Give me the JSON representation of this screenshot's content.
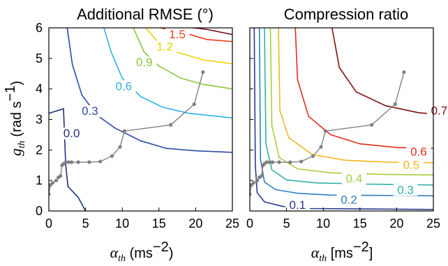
{
  "chart_data": [
    {
      "type": "line",
      "title": "Additional RMSE (°)",
      "x_label": {
        "symbol": "α",
        "sub": "th",
        "unit_pre": " (ms",
        "unit_sup": "−2",
        "unit_post": ")"
      },
      "y_label": {
        "symbol": "g",
        "sub": "th",
        "unit_pre": " (rad s",
        "unit_sup": "−1",
        "unit_post": ")"
      },
      "xlim": [
        0,
        25
      ],
      "ylim": [
        0,
        6
      ],
      "x_ticks": [
        0,
        5,
        10,
        15,
        20,
        25
      ],
      "y_ticks": [
        0,
        1,
        2,
        3,
        4,
        5,
        6
      ],
      "grid": false,
      "contours": [
        {
          "level_label": "0.0",
          "color": "#1e2f7a",
          "points": [
            [
              0,
              3.2
            ],
            [
              2,
              3.35
            ],
            [
              2.3,
              1.5
            ],
            [
              2.6,
              0.8
            ],
            [
              4,
              0.45
            ],
            [
              5,
              0
            ]
          ],
          "label_at": [
            3.1,
            2.55
          ]
        },
        {
          "level_label": "0.3",
          "color": "#2c4aa6",
          "points": [
            [
              2.5,
              6
            ],
            [
              3.2,
              4.8
            ],
            [
              4.5,
              3.8
            ],
            [
              6.5,
              3.15
            ],
            [
              9,
              2.72
            ],
            [
              12.5,
              2.3
            ],
            [
              16,
              2.05
            ],
            [
              20,
              1.97
            ],
            [
              25,
              1.92
            ]
          ],
          "label_at": [
            5.6,
            3.28
          ]
        },
        {
          "level_label": "0.6",
          "color": "#2fb1e6",
          "points": [
            [
              7.5,
              6
            ],
            [
              8.5,
              5.2
            ],
            [
              10,
              4.35
            ],
            [
              12.5,
              3.75
            ],
            [
              15.5,
              3.4
            ],
            [
              19,
              3.2
            ],
            [
              25,
              3.05
            ]
          ],
          "label_at": [
            10.2,
            4.1
          ]
        },
        {
          "level_label": "0.9",
          "color": "#8cc63e",
          "points": [
            [
              11.5,
              6
            ],
            [
              13,
              5.2
            ],
            [
              15,
              4.75
            ],
            [
              18,
              4.35
            ],
            [
              21,
              4.15
            ],
            [
              25,
              4.0
            ]
          ],
          "label_at": [
            13.0,
            4.88
          ]
        },
        {
          "level_label": "1.2",
          "color": "#e9d400",
          "points": [
            [
              13.2,
              6
            ],
            [
              15,
              5.5
            ],
            [
              17.5,
              5.2
            ],
            [
              21,
              4.95
            ],
            [
              25,
              4.82
            ]
          ],
          "label_at": [
            15.8,
            5.4
          ]
        },
        {
          "level_label": "1.5",
          "color": "#e8401b",
          "points": [
            [
              15.2,
              6
            ],
            [
              17,
              5.9
            ],
            [
              19,
              5.8
            ],
            [
              21.5,
              5.62
            ],
            [
              25,
              5.55
            ]
          ],
          "label_at": [
            17.5,
            5.8
          ]
        },
        {
          "level_label": "",
          "color": "#7a1420",
          "points": [
            [
              19,
              6.02
            ],
            [
              21.5,
              5.95
            ],
            [
              25,
              5.78
            ]
          ],
          "label_at": null
        }
      ],
      "path": [
        [
          0,
          0.55
        ],
        [
          0.2,
          0.85
        ],
        [
          0.5,
          0.92
        ],
        [
          1.0,
          1.0
        ],
        [
          1.3,
          1.1
        ],
        [
          1.6,
          1.15
        ],
        [
          1.8,
          1.5
        ],
        [
          2.0,
          1.55
        ],
        [
          2.3,
          1.6
        ],
        [
          2.7,
          1.6
        ],
        [
          3.1,
          1.6
        ],
        [
          4.0,
          1.6
        ],
        [
          5.5,
          1.6
        ],
        [
          7.0,
          1.62
        ],
        [
          8.6,
          1.8
        ],
        [
          9.7,
          2.1
        ],
        [
          10.3,
          2.62
        ],
        [
          16.6,
          2.82
        ],
        [
          19.8,
          3.5
        ],
        [
          21.0,
          4.55
        ]
      ]
    },
    {
      "type": "line",
      "title": "Compression ratio",
      "x_label": {
        "symbol": "α",
        "sub": "th",
        "unit_pre": " [ms",
        "unit_sup": "−2",
        "unit_post": "]"
      },
      "xlim": [
        0,
        25
      ],
      "ylim": [
        0,
        6
      ],
      "x_ticks": [
        0,
        5,
        10,
        15,
        20,
        25
      ],
      "y_ticks": [
        0,
        1,
        2,
        3,
        4,
        5,
        6
      ],
      "grid": false,
      "contours": [
        {
          "level_label": "0.1",
          "color": "#2a3a8c",
          "points": [
            [
              0.6,
              6
            ],
            [
              0.75,
              1.5
            ],
            [
              1.0,
              0.6
            ],
            [
              2,
              0.3
            ],
            [
              4.5,
              0.15
            ],
            [
              8,
              0.08
            ],
            [
              25,
              0.05
            ]
          ],
          "label_at": [
            6.5,
            0.2
          ]
        },
        {
          "level_label": "0.2",
          "color": "#2e7fc3",
          "points": [
            [
              1.3,
              6
            ],
            [
              1.45,
              1.7
            ],
            [
              2,
              0.95
            ],
            [
              3.5,
              0.7
            ],
            [
              6.5,
              0.58
            ],
            [
              11,
              0.52
            ],
            [
              25,
              0.5
            ]
          ],
          "label_at": [
            13.5,
            0.38
          ]
        },
        {
          "level_label": "0.3",
          "color": "#31b0a4",
          "points": [
            [
              2.0,
              6
            ],
            [
              2.2,
              2.2
            ],
            [
              3,
              1.35
            ],
            [
              5,
              1.02
            ],
            [
              9,
              0.92
            ],
            [
              16,
              0.88
            ],
            [
              25,
              0.85
            ]
          ],
          "label_at": [
            21.2,
            0.7
          ]
        },
        {
          "level_label": "0.4",
          "color": "#a7cf3b",
          "points": [
            [
              2.8,
              6
            ],
            [
              3.0,
              2.8
            ],
            [
              4,
              1.75
            ],
            [
              6.5,
              1.38
            ],
            [
              11,
              1.25
            ],
            [
              18,
              1.2
            ],
            [
              25,
              1.18
            ]
          ],
          "label_at": [
            14.2,
            1.07
          ]
        },
        {
          "level_label": "0.5",
          "color": "#f3b61f",
          "points": [
            [
              3.9,
              6
            ],
            [
              4.1,
              3.3
            ],
            [
              5.3,
              2.4
            ],
            [
              8.5,
              1.85
            ],
            [
              13,
              1.66
            ],
            [
              19,
              1.6
            ],
            [
              25,
              1.58
            ]
          ],
          "label_at": [
            22.0,
            1.52
          ]
        },
        {
          "level_label": "0.6",
          "color": "#dd2d1b",
          "points": [
            [
              6.2,
              6
            ],
            [
              6.5,
              4.3
            ],
            [
              8,
              3.1
            ],
            [
              11,
              2.5
            ],
            [
              15,
              2.2
            ],
            [
              20,
              2.08
            ],
            [
              25,
              2.05
            ]
          ],
          "label_at": [
            23.0,
            1.95
          ]
        },
        {
          "level_label": "0.7",
          "color": "#7e1010",
          "points": [
            [
              11.2,
              6
            ],
            [
              12.2,
              4.7
            ],
            [
              14.5,
              3.9
            ],
            [
              18.5,
              3.45
            ],
            [
              23,
              3.22
            ],
            [
              25,
              3.18
            ]
          ],
          "label_at": [
            25.8,
            3.3
          ]
        }
      ],
      "path": [
        [
          0,
          0.55
        ],
        [
          0.2,
          0.85
        ],
        [
          0.5,
          0.92
        ],
        [
          1.0,
          1.0
        ],
        [
          1.3,
          1.1
        ],
        [
          1.6,
          1.15
        ],
        [
          1.8,
          1.5
        ],
        [
          2.0,
          1.55
        ],
        [
          2.3,
          1.6
        ],
        [
          2.7,
          1.6
        ],
        [
          3.1,
          1.6
        ],
        [
          4.0,
          1.6
        ],
        [
          5.5,
          1.6
        ],
        [
          7.0,
          1.62
        ],
        [
          8.6,
          1.8
        ],
        [
          9.7,
          2.1
        ],
        [
          10.3,
          2.62
        ],
        [
          16.6,
          2.82
        ],
        [
          19.8,
          3.5
        ],
        [
          21.0,
          4.55
        ]
      ]
    }
  ]
}
